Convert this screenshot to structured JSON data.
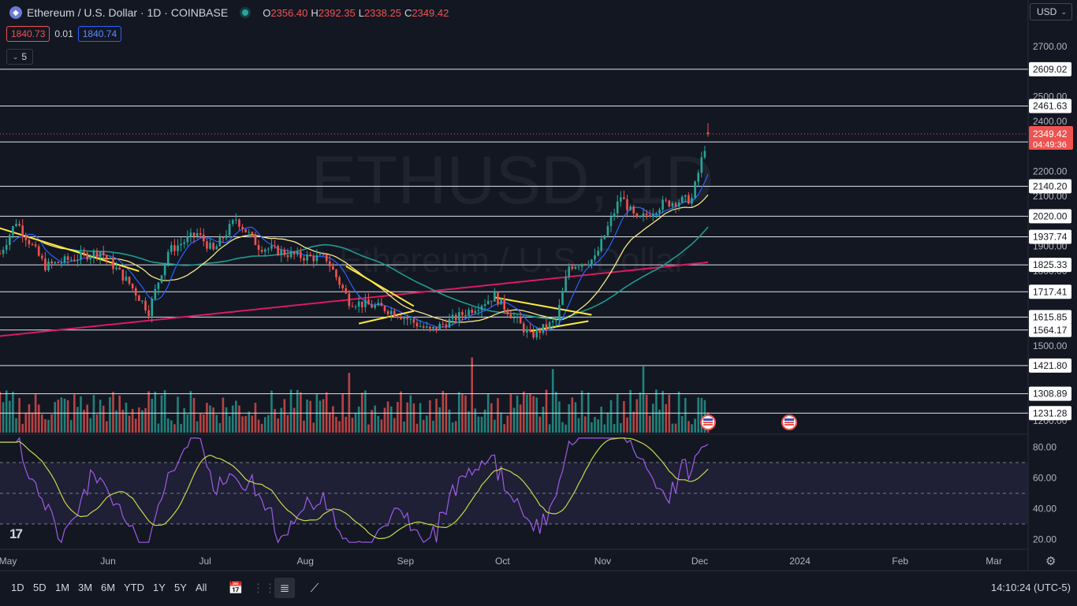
{
  "header": {
    "logo_icon": "ethereum-icon",
    "title": "Ethereum / U.S. Dollar · 1D · COINBASE",
    "ohlc": [
      {
        "k": "O",
        "v": "2356.40"
      },
      {
        "k": "H",
        "v": "2392.35"
      },
      {
        "k": "L",
        "v": "2338.25"
      },
      {
        "k": "C",
        "v": "2349.42"
      }
    ],
    "bid": "1840.73",
    "spread": "0.01",
    "ask": "1840.74",
    "indicators_count": "5"
  },
  "currency": "USD",
  "watermark": {
    "symbol": "ETHUSD, 1D",
    "name": "Ethereum / U.S. Dollar"
  },
  "price_axis": {
    "min": 1150,
    "max": 2760,
    "ticks": [
      "2700.00",
      "2500.00",
      "2400.00",
      "2200.00",
      "2100.00",
      "1900.00",
      "1800.00",
      "1500.00",
      "1200.00"
    ],
    "current_price": "2349.42",
    "countdown": "04:49:36"
  },
  "horizontal_lines": [
    "2609.02",
    "2461.63",
    "2317.64",
    "2140.20",
    "2020.00",
    "1937.74",
    "1825.33",
    "1717.41",
    "1615.85",
    "1564.17",
    "1421.80",
    "1308.89",
    "1231.28"
  ],
  "rsi": {
    "ticks": [
      "80.00",
      "60.00",
      "40.00",
      "20.00"
    ],
    "range": [
      14,
      88
    ],
    "upper": 70,
    "lower": 30
  },
  "time_axis": [
    "May",
    "Jun",
    "Jul",
    "Aug",
    "Sep",
    "Oct",
    "Nov",
    "Dec",
    "2024",
    "Feb",
    "Mar"
  ],
  "bottom_bar": {
    "timeframes": [
      "1D",
      "5D",
      "1M",
      "3M",
      "6M",
      "YTD",
      "1Y",
      "5Y",
      "All"
    ],
    "clock": "14:10:24 (UTC-5)"
  },
  "colors": {
    "background": "#131722",
    "up": "#26a69a",
    "down": "#ef5350",
    "ma_fast": "#2962ff",
    "ma_mid": "#f7e68a",
    "ma_slow": "#1e9b8f",
    "ma_long": "#d81b60",
    "trend": "#ffeb3b",
    "rsi": "#9b5de5",
    "rsi_ma": "#c7d84a"
  },
  "chart_data": {
    "type": "candlestick",
    "title": "Ethereum / U.S. Dollar · 1D · COINBASE",
    "x_range": [
      "2023-05-01",
      "2023-12-06"
    ],
    "ylim": [
      1150,
      2760
    ],
    "key_points": [
      {
        "date": "2023-05-01",
        "close": 1870
      },
      {
        "date": "2023-05-06",
        "close": 2000
      },
      {
        "date": "2023-05-15",
        "close": 1820
      },
      {
        "date": "2023-06-01",
        "close": 1880
      },
      {
        "date": "2023-06-10",
        "close": 1750
      },
      {
        "date": "2023-06-16",
        "close": 1640
      },
      {
        "date": "2023-06-22",
        "close": 1880
      },
      {
        "date": "2023-07-01",
        "close": 1950
      },
      {
        "date": "2023-07-06",
        "close": 1880
      },
      {
        "date": "2023-07-13",
        "close": 2010
      },
      {
        "date": "2023-07-20",
        "close": 1900
      },
      {
        "date": "2023-08-01",
        "close": 1860
      },
      {
        "date": "2023-08-10",
        "close": 1850
      },
      {
        "date": "2023-08-17",
        "close": 1680
      },
      {
        "date": "2023-08-28",
        "close": 1650
      },
      {
        "date": "2023-09-01",
        "close": 1630
      },
      {
        "date": "2023-09-11",
        "close": 1560
      },
      {
        "date": "2023-09-20",
        "close": 1620
      },
      {
        "date": "2023-10-01",
        "close": 1700
      },
      {
        "date": "2023-10-12",
        "close": 1540
      },
      {
        "date": "2023-10-20",
        "close": 1600
      },
      {
        "date": "2023-10-24",
        "close": 1820
      },
      {
        "date": "2023-11-01",
        "close": 1850
      },
      {
        "date": "2023-11-09",
        "close": 2100
      },
      {
        "date": "2023-11-14",
        "close": 2000
      },
      {
        "date": "2023-11-22",
        "close": 2070
      },
      {
        "date": "2023-12-01",
        "close": 2090
      },
      {
        "date": "2023-12-06",
        "close": 2349.42
      }
    ]
  }
}
